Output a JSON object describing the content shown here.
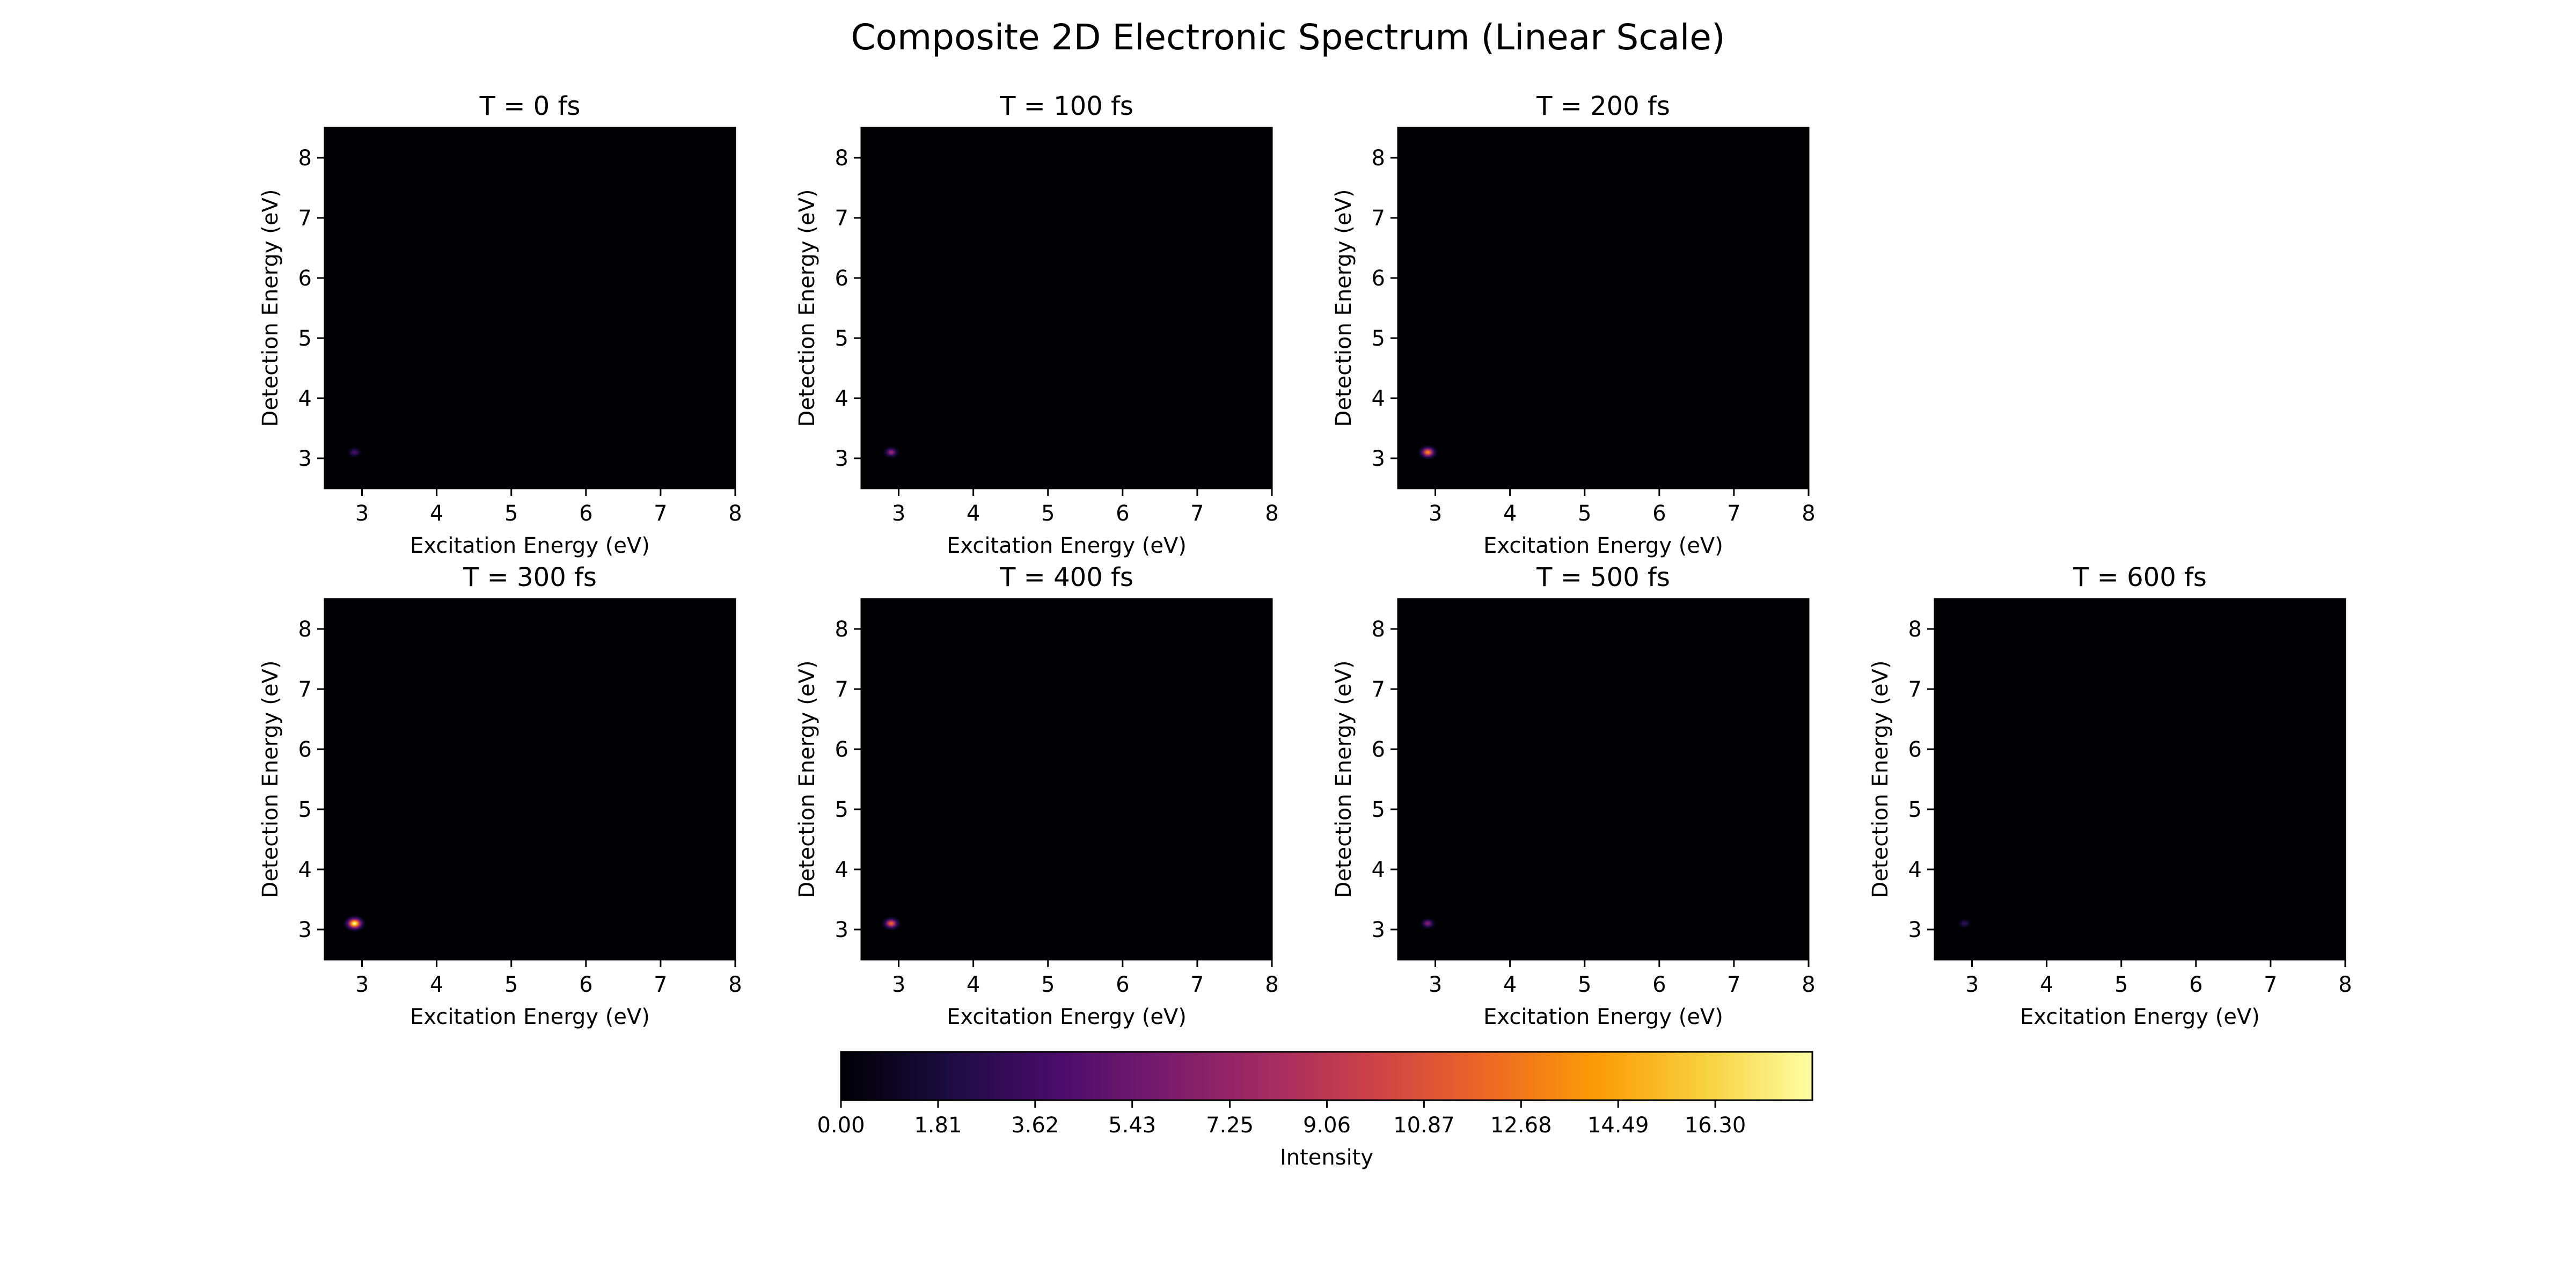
{
  "figure": {
    "title": "Composite 2D Electronic Spectrum (Linear Scale)"
  },
  "colormap": {
    "name": "inferno",
    "stops": [
      "#000004",
      "#1b0c41",
      "#4a0c6b",
      "#781c6d",
      "#a52c60",
      "#cf4446",
      "#ed6925",
      "#fb9b06",
      "#f7d13d",
      "#fcffa4"
    ]
  },
  "chart_data": [
    {
      "type": "heatmap",
      "title": "T = 0 fs",
      "xlabel": "Excitation Energy (eV)",
      "ylabel": "Detection Energy (eV)",
      "xlim": [
        2.5,
        8.0
      ],
      "ylim": [
        2.5,
        8.5
      ],
      "xticks": [
        3,
        4,
        5,
        6,
        7,
        8
      ],
      "yticks": [
        3,
        4,
        5,
        6,
        7,
        8
      ],
      "peaks": [
        {
          "x": 2.9,
          "y": 3.1,
          "intensity": 4.2
        }
      ]
    },
    {
      "type": "heatmap",
      "title": "T = 100 fs",
      "xlabel": "Excitation Energy (eV)",
      "ylabel": "Detection Energy (eV)",
      "xlim": [
        2.5,
        8.0
      ],
      "ylim": [
        2.5,
        8.5
      ],
      "xticks": [
        3,
        4,
        5,
        6,
        7,
        8
      ],
      "yticks": [
        3,
        4,
        5,
        6,
        7,
        8
      ],
      "peaks": [
        {
          "x": 2.9,
          "y": 3.1,
          "intensity": 7.5
        }
      ]
    },
    {
      "type": "heatmap",
      "title": "T = 200 fs",
      "xlabel": "Excitation Energy (eV)",
      "ylabel": "Detection Energy (eV)",
      "xlim": [
        2.5,
        8.0
      ],
      "ylim": [
        2.5,
        8.5
      ],
      "xticks": [
        3,
        4,
        5,
        6,
        7,
        8
      ],
      "yticks": [
        3,
        4,
        5,
        6,
        7,
        8
      ],
      "peaks": [
        {
          "x": 2.9,
          "y": 3.1,
          "intensity": 13.5
        }
      ]
    },
    {
      "type": "heatmap",
      "title": "T = 300 fs",
      "xlabel": "Excitation Energy (eV)",
      "ylabel": "Detection Energy (eV)",
      "xlim": [
        2.5,
        8.0
      ],
      "ylim": [
        2.5,
        8.5
      ],
      "xticks": [
        3,
        4,
        5,
        6,
        7,
        8
      ],
      "yticks": [
        3,
        4,
        5,
        6,
        7,
        8
      ],
      "peaks": [
        {
          "x": 2.9,
          "y": 3.1,
          "intensity": 18.1
        }
      ]
    },
    {
      "type": "heatmap",
      "title": "T = 400 fs",
      "xlabel": "Excitation Energy (eV)",
      "ylabel": "Detection Energy (eV)",
      "xlim": [
        2.5,
        8.0
      ],
      "ylim": [
        2.5,
        8.5
      ],
      "xticks": [
        3,
        4,
        5,
        6,
        7,
        8
      ],
      "yticks": [
        3,
        4,
        5,
        6,
        7,
        8
      ],
      "peaks": [
        {
          "x": 2.9,
          "y": 3.1,
          "intensity": 12.0
        }
      ]
    },
    {
      "type": "heatmap",
      "title": "T = 500 fs",
      "xlabel": "Excitation Energy (eV)",
      "ylabel": "Detection Energy (eV)",
      "xlim": [
        2.5,
        8.0
      ],
      "ylim": [
        2.5,
        8.5
      ],
      "xticks": [
        3,
        4,
        5,
        6,
        7,
        8
      ],
      "yticks": [
        3,
        4,
        5,
        6,
        7,
        8
      ],
      "peaks": [
        {
          "x": 2.9,
          "y": 3.1,
          "intensity": 6.5
        }
      ]
    },
    {
      "type": "heatmap",
      "title": "T = 600 fs",
      "xlabel": "Excitation Energy (eV)",
      "ylabel": "Detection Energy (eV)",
      "xlim": [
        2.5,
        8.0
      ],
      "ylim": [
        2.5,
        8.5
      ],
      "xticks": [
        3,
        4,
        5,
        6,
        7,
        8
      ],
      "yticks": [
        3,
        4,
        5,
        6,
        7,
        8
      ],
      "peaks": [
        {
          "x": 2.9,
          "y": 3.1,
          "intensity": 3.0
        }
      ]
    },
    {
      "type": "colorbar",
      "label": "Intensity",
      "range": [
        0.0,
        18.11
      ],
      "ticks": [
        "0.00",
        "1.81",
        "3.62",
        "5.43",
        "7.25",
        "9.06",
        "10.87",
        "12.68",
        "14.49",
        "16.30"
      ]
    }
  ]
}
